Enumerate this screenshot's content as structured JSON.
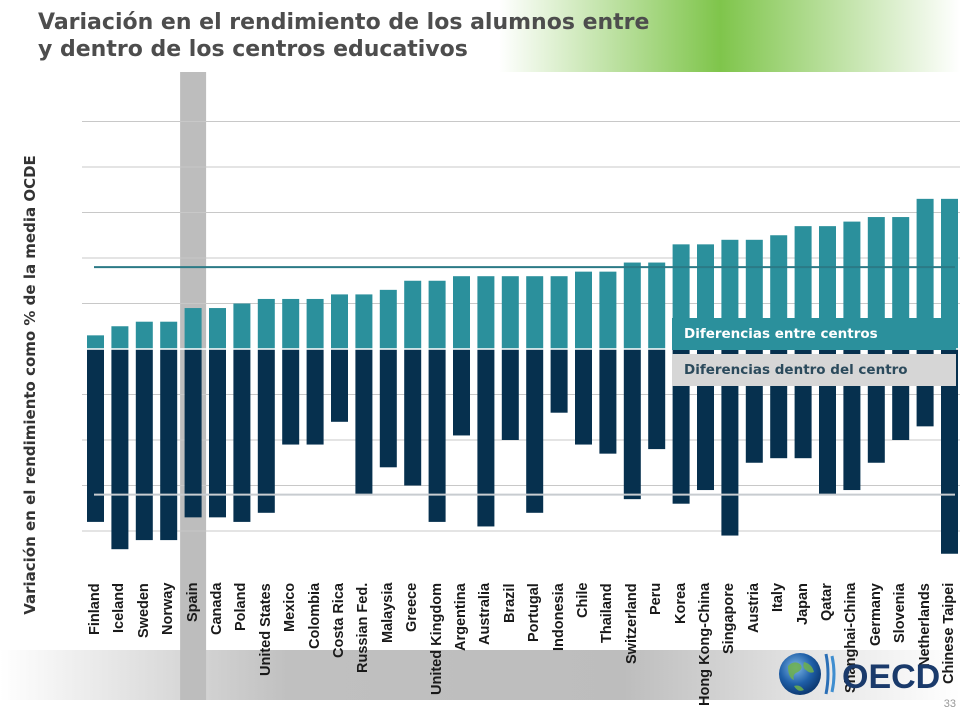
{
  "title": {
    "line1": "Variación en el rendimiento de los alumnos entre",
    "line2": "y dentro de los centros educativos"
  },
  "page_number": "33",
  "logo_text": "OECD",
  "colors": {
    "between_bar": "#2b909c",
    "within_bar": "#06304e",
    "highlight_column": "#bdbdbd",
    "oecd_average_line": "#2b7a86",
    "legend_within_background": "#d6d6d6",
    "grid": "#c8c8c8"
  },
  "chart_data": {
    "type": "bar",
    "ylabel": "Variación en el rendimiento como % de la media OCDE",
    "grid": true,
    "highlighted_category": "Spain",
    "legend_position": "right",
    "categories": [
      "Finland",
      "Iceland",
      "Sweden",
      "Norway",
      "Spain",
      "Canada",
      "Poland",
      "United States",
      "Mexico",
      "Colombia",
      "Costa Rica",
      "Russian Fed.",
      "Malaysia",
      "Greece",
      "United Kingdom",
      "Argentina",
      "Australia",
      "Brazil",
      "Portugal",
      "Indonesia",
      "Chile",
      "Thailand",
      "Switzerland",
      "Peru",
      "Korea",
      "Hong Kong-China",
      "Singapore",
      "Austria",
      "Italy",
      "Japan",
      "Qatar",
      "Shanghai-China",
      "Germany",
      "Slovenia",
      "Netherlands",
      "Chinese Taipei"
    ],
    "series": [
      {
        "name": "Diferencias entre centros",
        "values": [
          3,
          5,
          6,
          6,
          9,
          9,
          10,
          11,
          11,
          11,
          12,
          12,
          13,
          15,
          15,
          16,
          16,
          16,
          16,
          16,
          17,
          17,
          19,
          19,
          23,
          23,
          24,
          24,
          25,
          27,
          27,
          28,
          29,
          29,
          33,
          33
        ]
      },
      {
        "name": "Diferencias dentro del centro",
        "values": [
          -38,
          -44,
          -42,
          -42,
          -37,
          -37,
          -38,
          -36,
          -21,
          -21,
          -16,
          -32,
          -26,
          -30,
          -38,
          -19,
          -39,
          -20,
          -36,
          -14,
          -21,
          -23,
          -33,
          -22,
          -34,
          -31,
          -41,
          -25,
          -24,
          -24,
          -32,
          -31,
          -25,
          -20,
          -17,
          -45
        ]
      }
    ],
    "reference_lines": {
      "between_oecd_average": 18,
      "within_oecd_average": -32
    },
    "ylim": [
      -50,
      50
    ]
  }
}
